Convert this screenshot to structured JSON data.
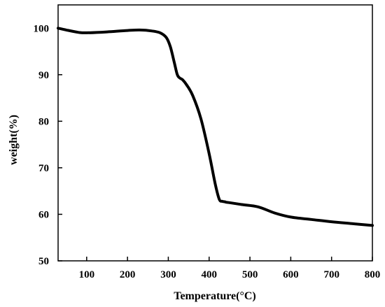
{
  "chart_data": {
    "type": "line",
    "title": "",
    "xlabel": "Temperature(°C)",
    "ylabel": "weight(%)",
    "xlim": [
      30,
      800
    ],
    "ylim": [
      50,
      105
    ],
    "xticks": [
      100,
      200,
      300,
      400,
      500,
      600,
      700,
      800
    ],
    "yticks": [
      50,
      60,
      70,
      80,
      90,
      100
    ],
    "grid": false,
    "legend": "none",
    "line_color": "#000000",
    "series": [
      {
        "x": [
          30,
          50,
          80,
          100,
          150,
          200,
          230,
          260,
          280,
          295,
          305,
          315,
          322,
          328,
          335,
          345,
          360,
          380,
          400,
          415,
          425,
          432,
          438,
          442,
          450,
          480,
          520,
          560,
          600,
          650,
          700,
          750,
          800
        ],
        "y": [
          100,
          99.6,
          99.1,
          99.0,
          99.2,
          99.5,
          99.6,
          99.4,
          99.0,
          98.0,
          96.0,
          92.5,
          90.0,
          89.3,
          88.9,
          87.8,
          85.5,
          80.5,
          73.0,
          66.5,
          63.2,
          62.8,
          62.7,
          62.6,
          62.5,
          62.1,
          61.6,
          60.3,
          59.4,
          58.9,
          58.4,
          58.0,
          57.6
        ]
      }
    ]
  }
}
